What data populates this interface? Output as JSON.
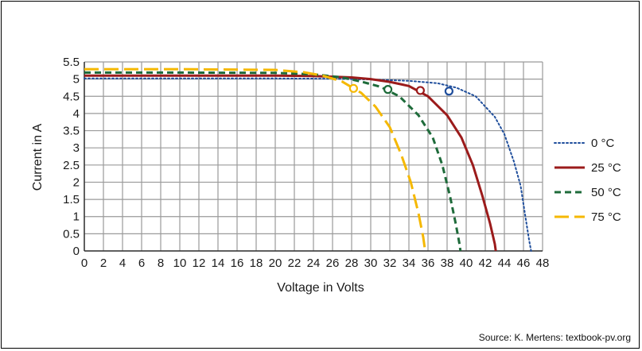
{
  "chart_data": {
    "type": "line",
    "xlabel": "Voltage in Volts",
    "ylabel": "Current in A",
    "xlim": [
      0,
      48
    ],
    "ylim": [
      0,
      5.5
    ],
    "x_ticks": [
      "0",
      "2",
      "4",
      "6",
      "8",
      "10",
      "12",
      "14",
      "16",
      "18",
      "20",
      "22",
      "24",
      "26",
      "28",
      "30",
      "32",
      "34",
      "36",
      "38",
      "40",
      "42",
      "44",
      "46",
      "48"
    ],
    "y_ticks": [
      "0",
      "0.5",
      "1",
      "1.5",
      "2",
      "2.5",
      "3",
      "3.5",
      "4",
      "4.5",
      "5",
      "5.5"
    ],
    "grid": true,
    "legend_position": "right",
    "series": [
      {
        "name": "0 °C",
        "color": "#1f4e9c",
        "style": "dotted",
        "mpp": [
          38.2,
          4.65
        ],
        "points": [
          [
            0,
            5.02
          ],
          [
            10,
            5.02
          ],
          [
            20,
            5.02
          ],
          [
            26,
            5.01
          ],
          [
            30,
            4.99
          ],
          [
            34,
            4.95
          ],
          [
            37,
            4.88
          ],
          [
            39,
            4.75
          ],
          [
            41,
            4.5
          ],
          [
            43,
            3.9
          ],
          [
            44,
            3.4
          ],
          [
            45,
            2.6
          ],
          [
            45.7,
            1.9
          ],
          [
            46.2,
            1.0
          ],
          [
            46.6,
            0.3
          ],
          [
            46.8,
            0
          ]
        ]
      },
      {
        "name": "25 °C",
        "color": "#9b1b1b",
        "style": "solid",
        "mpp": [
          35.2,
          4.67
        ],
        "points": [
          [
            0,
            5.1
          ],
          [
            10,
            5.1
          ],
          [
            20,
            5.1
          ],
          [
            24,
            5.09
          ],
          [
            28,
            5.05
          ],
          [
            30,
            5.0
          ],
          [
            32,
            4.92
          ],
          [
            34,
            4.8
          ],
          [
            36,
            4.5
          ],
          [
            38,
            3.95
          ],
          [
            39.5,
            3.3
          ],
          [
            40.7,
            2.5
          ],
          [
            41.7,
            1.6
          ],
          [
            42.5,
            0.8
          ],
          [
            43,
            0.2
          ],
          [
            43.1,
            0
          ]
        ]
      },
      {
        "name": "50 °C",
        "color": "#1e6b3a",
        "style": "dashed",
        "mpp": [
          31.8,
          4.7
        ],
        "points": [
          [
            0,
            5.19
          ],
          [
            10,
            5.19
          ],
          [
            20,
            5.18
          ],
          [
            24,
            5.14
          ],
          [
            27,
            5.05
          ],
          [
            29,
            4.93
          ],
          [
            31,
            4.78
          ],
          [
            33,
            4.5
          ],
          [
            35,
            3.95
          ],
          [
            36.5,
            3.3
          ],
          [
            37.5,
            2.5
          ],
          [
            38.3,
            1.6
          ],
          [
            38.9,
            0.8
          ],
          [
            39.3,
            0.2
          ],
          [
            39.4,
            0
          ]
        ]
      },
      {
        "name": "75 °C",
        "color": "#f5b800",
        "style": "long-dash",
        "mpp": [
          28.2,
          4.73
        ],
        "points": [
          [
            0,
            5.29
          ],
          [
            10,
            5.29
          ],
          [
            20,
            5.27
          ],
          [
            23,
            5.2
          ],
          [
            25,
            5.1
          ],
          [
            27,
            4.93
          ],
          [
            29,
            4.6
          ],
          [
            30.5,
            4.2
          ],
          [
            32,
            3.6
          ],
          [
            33.2,
            2.8
          ],
          [
            34.2,
            2.0
          ],
          [
            35,
            1.1
          ],
          [
            35.5,
            0.4
          ],
          [
            35.7,
            0
          ]
        ]
      }
    ]
  },
  "source_text": "Source: K. Mertens: textbook-pv.org"
}
